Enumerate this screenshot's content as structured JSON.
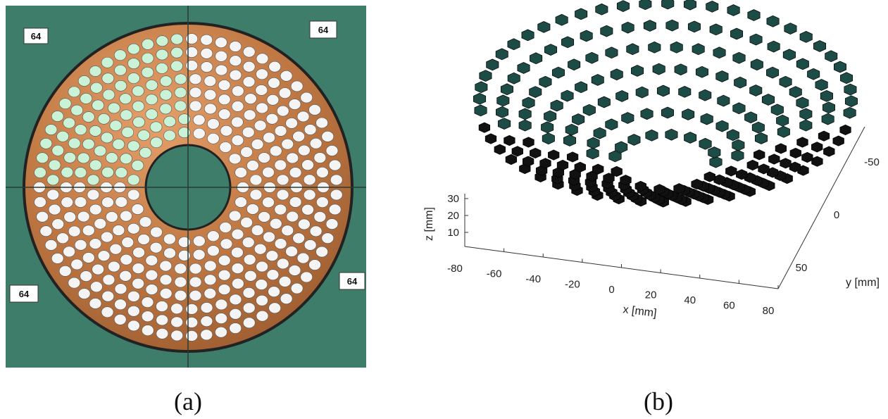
{
  "panel_a": {
    "corner_labels": [
      "64",
      "64",
      "64",
      "64"
    ],
    "caption": "(a)"
  },
  "panel_b": {
    "x_axis": {
      "label": "x [mm]",
      "ticks": [
        -80,
        -60,
        -40,
        -20,
        0,
        20,
        40,
        60,
        80
      ]
    },
    "y_axis": {
      "label": "y [mm]",
      "ticks": [
        -50,
        0,
        50
      ]
    },
    "z_axis": {
      "label": "z [mm]",
      "ticks": [
        10,
        20,
        30
      ]
    },
    "caption": "(b)"
  }
}
